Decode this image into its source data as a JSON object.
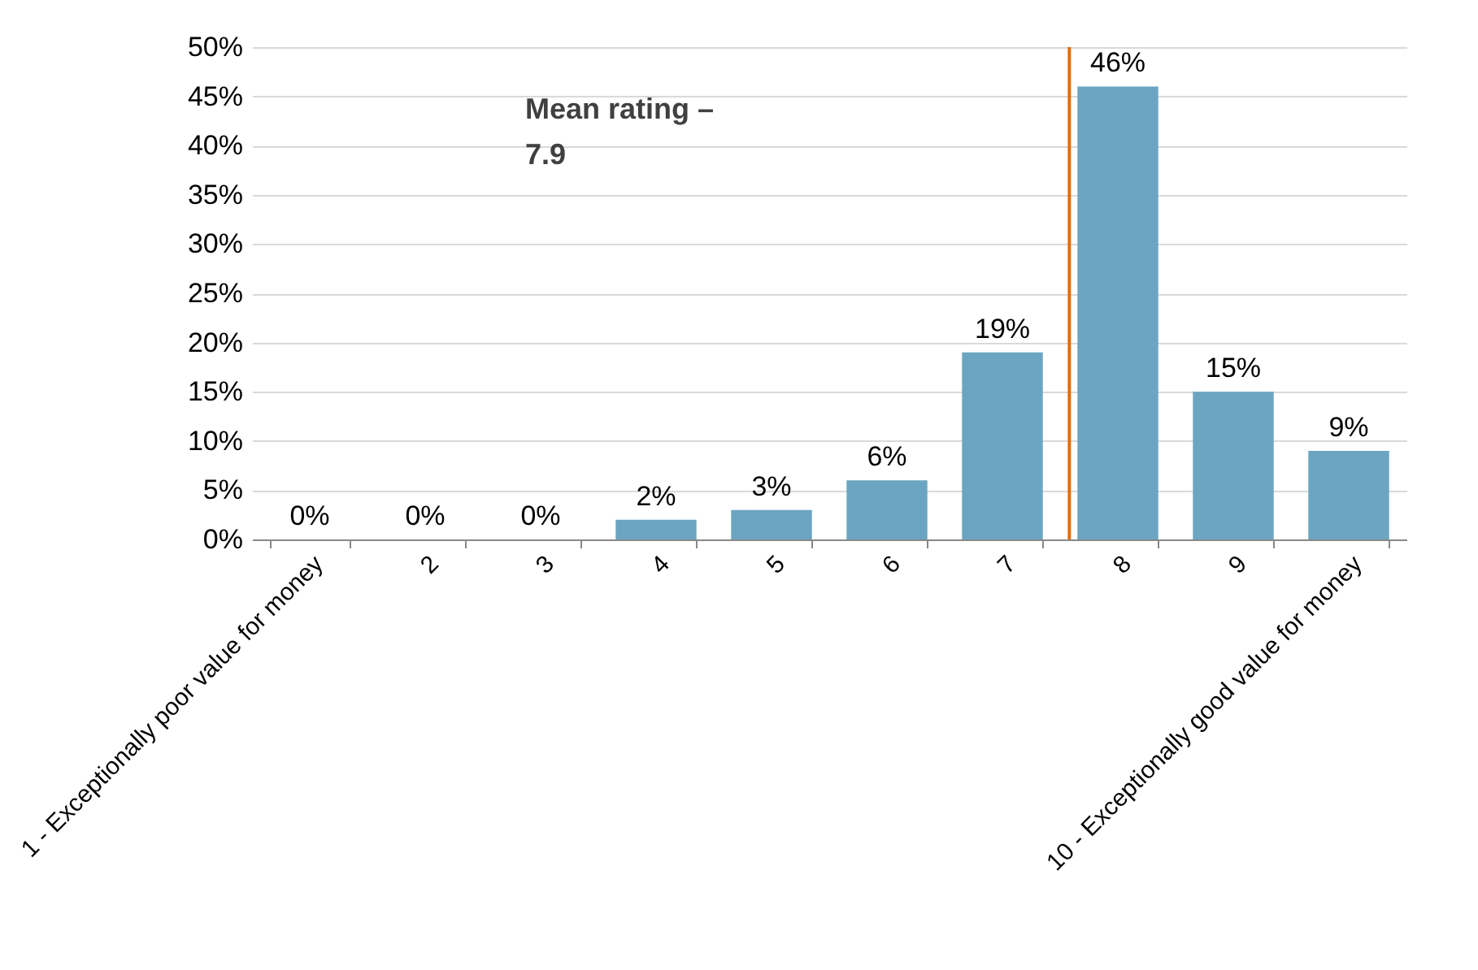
{
  "chart_data": {
    "type": "bar",
    "categories": [
      "1 - Exceptionally poor value for money",
      "2",
      "3",
      "4",
      "5",
      "6",
      "7",
      "8",
      "9",
      "10 - Exceptionally good value for money"
    ],
    "values": [
      0,
      0,
      0,
      2,
      3,
      6,
      19,
      46,
      15,
      9
    ],
    "value_labels": [
      "0%",
      "0%",
      "0%",
      "2%",
      "3%",
      "6%",
      "19%",
      "46%",
      "15%",
      "9%"
    ],
    "color": "#6ba5c1",
    "ylim": [
      0,
      50
    ],
    "yticks": [
      {
        "value": 0,
        "label": "0%"
      },
      {
        "value": 5,
        "label": "5%"
      },
      {
        "value": 10,
        "label": "10%"
      },
      {
        "value": 15,
        "label": "15%"
      },
      {
        "value": 20,
        "label": "20%"
      },
      {
        "value": 25,
        "label": "25%"
      },
      {
        "value": 30,
        "label": "30%"
      },
      {
        "value": 35,
        "label": "35%"
      },
      {
        "value": 40,
        "label": "40%"
      },
      {
        "value": 45,
        "label": "45%"
      },
      {
        "value": 50,
        "label": "50%"
      }
    ],
    "ref_lines": [
      {
        "axis": "x",
        "value": "8",
        "color": "#e36c09"
      }
    ],
    "annotations": [
      "Mean rating – 7.9"
    ],
    "grid": "y"
  }
}
